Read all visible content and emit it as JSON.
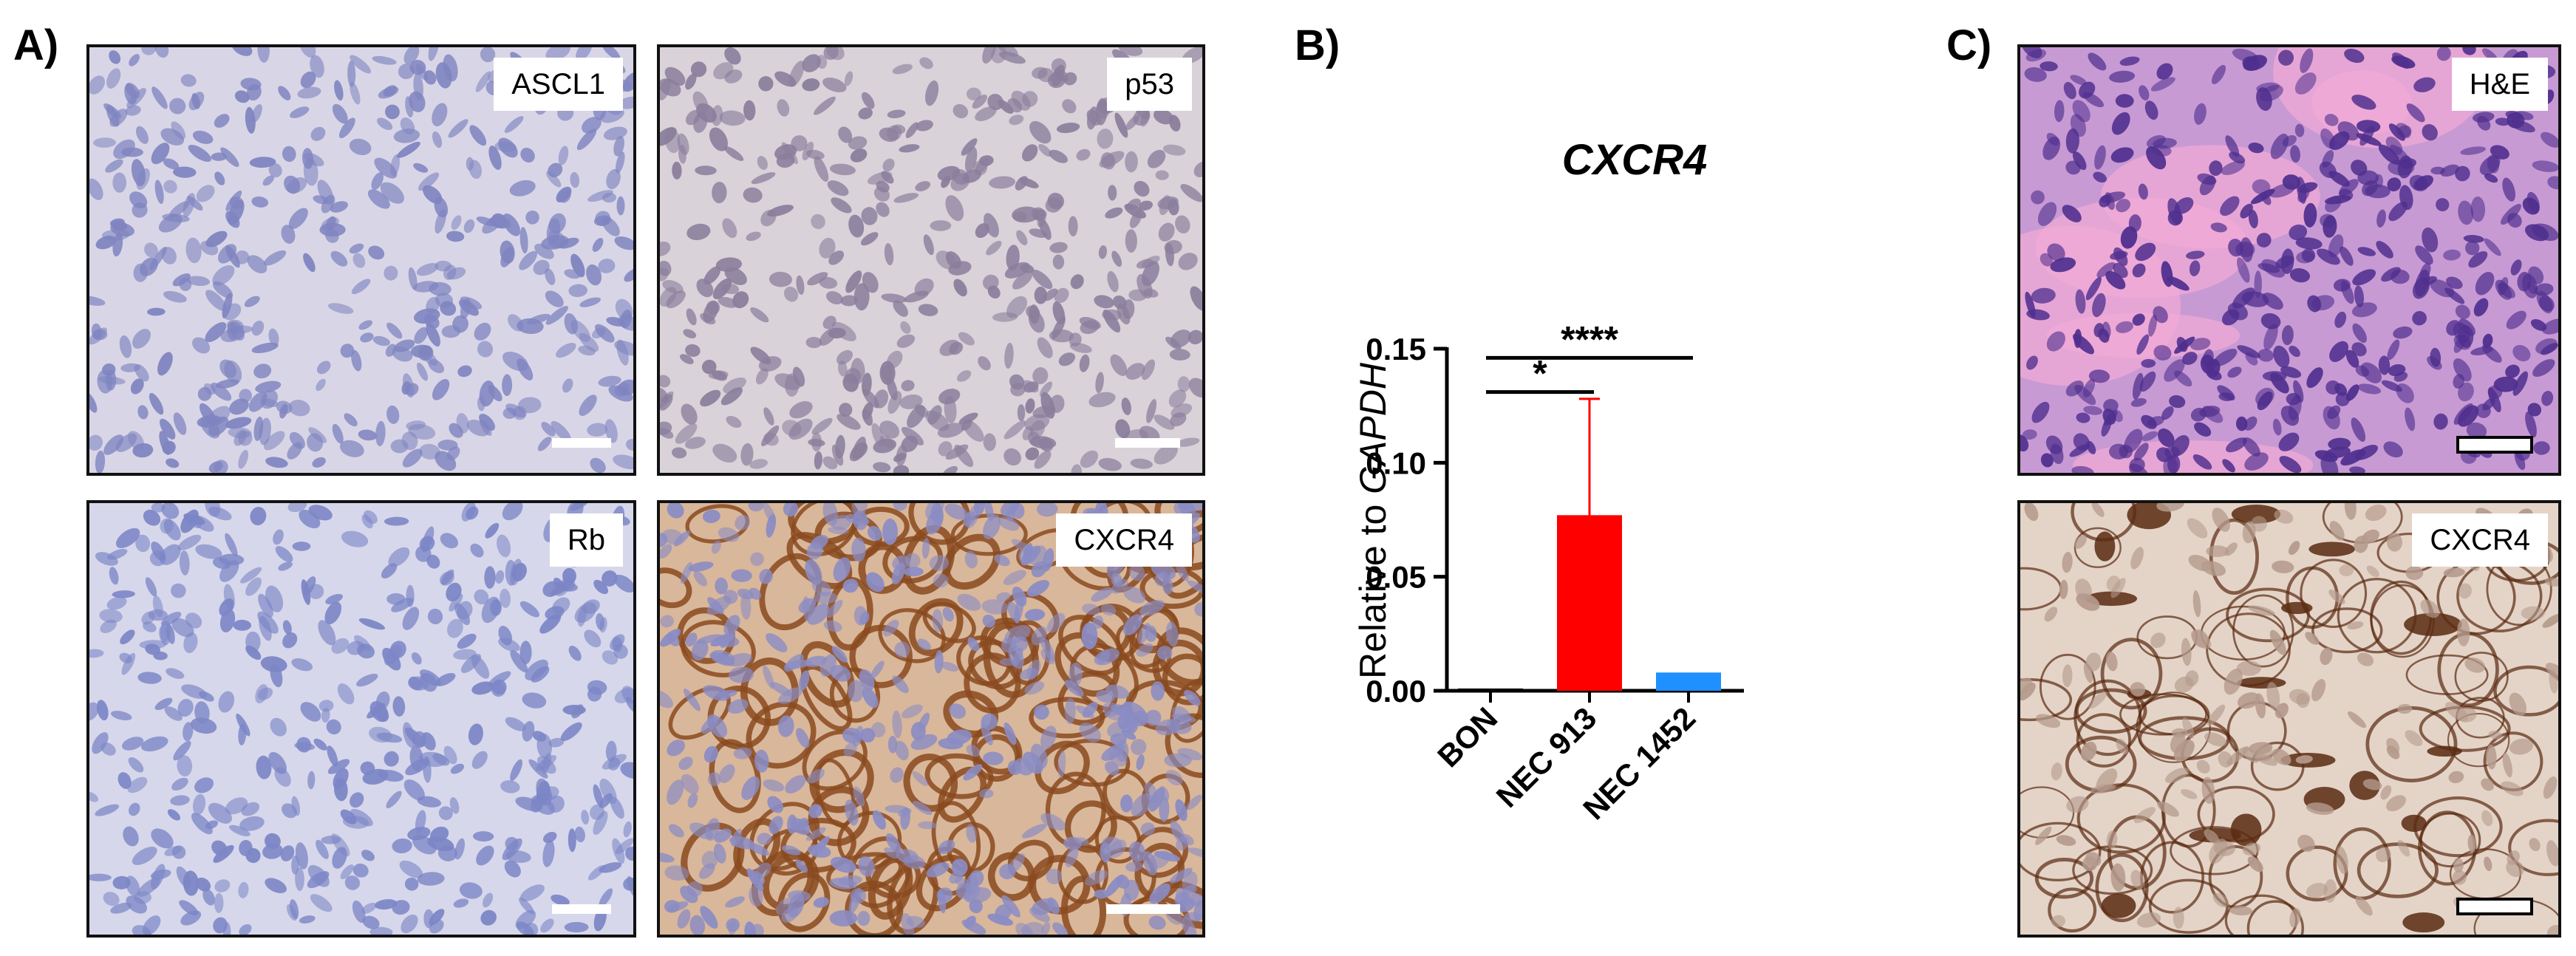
{
  "panels": {
    "a": {
      "letter": "A)"
    },
    "b": {
      "letter": "B)"
    },
    "c": {
      "letter": "C)"
    }
  },
  "micrographs": {
    "ascl1": {
      "label": "ASCL1",
      "stain": "hematoxylin-blue",
      "base_color": "#d8d6e6",
      "nucleus_color": "#7f84c0"
    },
    "p53": {
      "label": "p53",
      "stain": "weak-brown-nuclear",
      "base_color": "#d9d2d8",
      "nucleus_color": "#8a7e9c"
    },
    "rb": {
      "label": "Rb",
      "stain": "hematoxylin-blue",
      "base_color": "#d6d7ea",
      "nucleus_color": "#7c86c6"
    },
    "cxcr4_a": {
      "label": "CXCR4",
      "stain": "dab-membranous-brown",
      "base_color": "#d9b79a",
      "nucleus_color": "#8a8cc4",
      "membrane_color": "#8a4a1e"
    },
    "he": {
      "label": "H&E",
      "stain": "hematoxylin-eosin",
      "base_color": "#c89ad4",
      "nucleus_color": "#4f2f8e",
      "stroma_color": "#f0a9d6"
    },
    "cxcr4_c": {
      "label": "CXCR4",
      "stain": "dab-diffuse",
      "base_color": "#e4d4c8",
      "nucleus_color": "#b49a8c",
      "membrane_color": "#5a2a10"
    }
  },
  "chart_data": {
    "type": "bar",
    "title": "CXCR4",
    "ylabel_prefix": "Relative to ",
    "ylabel_italic": "GAPDH",
    "xlabel": "",
    "categories": [
      "BON",
      "NEC 913",
      "NEC 1452"
    ],
    "values": [
      0.001,
      0.077,
      0.008
    ],
    "error_upper": [
      0.0005,
      0.128,
      0.0085
    ],
    "colors": [
      "#000000",
      "#ff0000",
      "#1e90ff"
    ],
    "ylim": [
      0,
      0.15
    ],
    "yticks": [
      0.0,
      0.05,
      0.1,
      0.15
    ],
    "ytick_labels": [
      "0.00",
      "0.05",
      "0.10",
      "0.15"
    ],
    "significance": [
      {
        "from": 0,
        "to": 2,
        "label": "****",
        "y": 0.146
      },
      {
        "from": 0,
        "to": 1,
        "label": "*",
        "y": 0.131
      }
    ],
    "grid": false,
    "legend": "none"
  }
}
